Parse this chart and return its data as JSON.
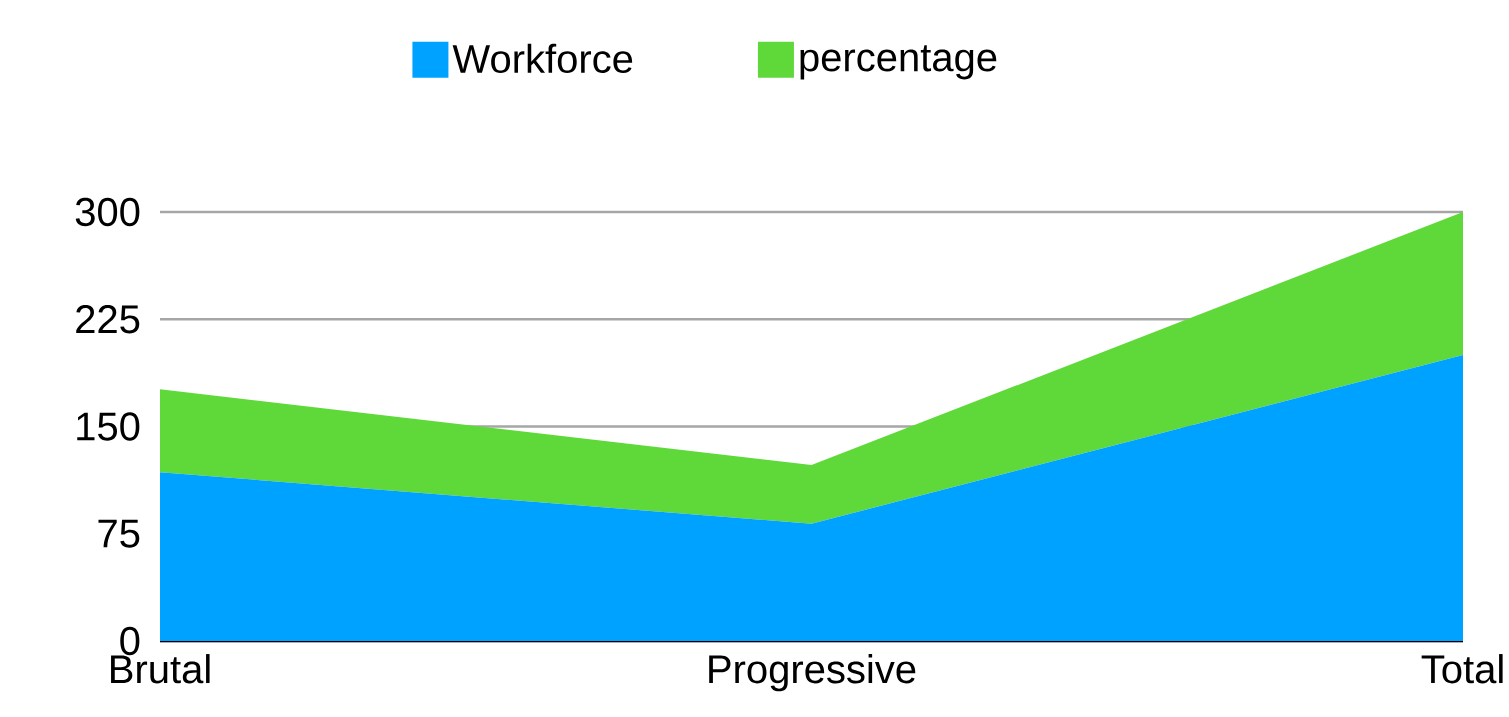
{
  "chart_data": {
    "type": "area",
    "stacked": true,
    "categories": [
      "Brutal",
      "Progressive",
      "Total"
    ],
    "series": [
      {
        "name": "Workforce",
        "color": "#00a2ff",
        "values": [
          118,
          82,
          200
        ]
      },
      {
        "name": "percentage",
        "color": "#5fd939",
        "values": [
          58,
          41,
          100
        ]
      }
    ],
    "ylim": [
      0,
      300
    ],
    "yticks": [
      0,
      75,
      150,
      225,
      300
    ],
    "grid": "y",
    "legend": "top"
  }
}
